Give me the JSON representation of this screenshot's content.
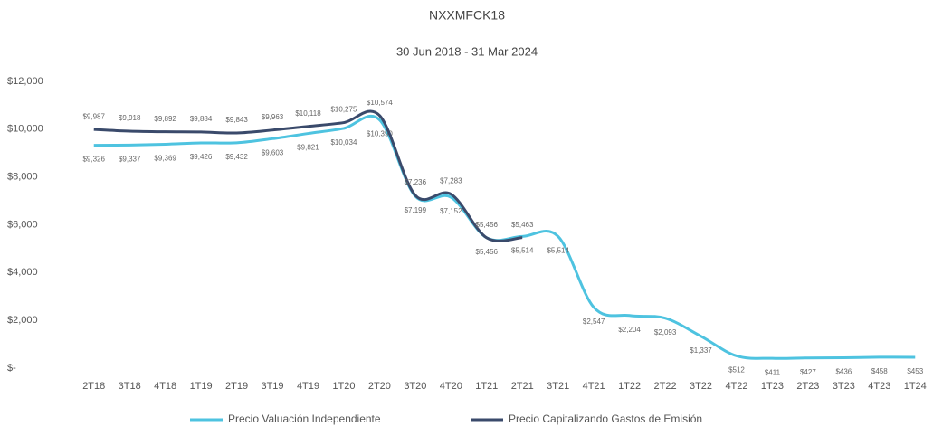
{
  "chart_data": {
    "type": "line",
    "title": "NXXMFCK18",
    "subtitle": "30 Jun 2018 - 31 Mar 2024",
    "categories": [
      "2T18",
      "3T18",
      "4T18",
      "1T19",
      "2T19",
      "3T19",
      "4T19",
      "1T20",
      "2T20",
      "3T20",
      "4T20",
      "1T21",
      "2T21",
      "3T21",
      "4T21",
      "1T22",
      "2T22",
      "3T22",
      "4T22",
      "1T23",
      "2T23",
      "3T23",
      "4T23",
      "1T24"
    ],
    "ylim": [
      0,
      12000
    ],
    "yticks": [
      {
        "value": 0,
        "label": "$-"
      },
      {
        "value": 2000,
        "label": "$2,000"
      },
      {
        "value": 4000,
        "label": "$4,000"
      },
      {
        "value": 6000,
        "label": "$6,000"
      },
      {
        "value": 8000,
        "label": "$8,000"
      },
      {
        "value": 10000,
        "label": "$10,000"
      },
      {
        "value": 12000,
        "label": "$12,000"
      }
    ],
    "grid": false,
    "legend": "bottom",
    "series": [
      {
        "name": "Precio Valuación Independiente",
        "color": "#4ec3e0",
        "values": [
          9326,
          9337,
          9369,
          9426,
          9432,
          9603,
          9821,
          10034,
          10390,
          7199,
          7152,
          5456,
          5514,
          5514,
          2547,
          2204,
          2093,
          1337,
          512,
          411,
          427,
          436,
          458,
          453
        ],
        "value_labels": [
          "$9,326",
          "$9,337",
          "$9,369",
          "$9,426",
          "$9,432",
          "$9,603",
          "$9,821",
          "$10,034",
          "$10,390",
          "$7,199",
          "$7,152",
          "$5,456",
          "$5,514",
          "$5,514",
          "$2,547",
          "$2,204",
          "$2,093",
          "$1,337",
          "$512",
          "$411",
          "$427",
          "$436",
          "$458",
          "$453"
        ]
      },
      {
        "name": "Precio Capitalizando Gastos de Emisión",
        "color": "#3a4a6b",
        "values": [
          9987,
          9918,
          9892,
          9884,
          9843,
          9963,
          10118,
          10275,
          10574,
          7236,
          7283,
          5456,
          5463,
          null,
          null,
          null,
          null,
          null,
          null,
          null,
          null,
          null,
          null,
          null
        ],
        "value_labels": [
          "$9,987",
          "$9,918",
          "$9,892",
          "$9,884",
          "$9,843",
          "$9,963",
          "$10,118",
          "$10,275",
          "$10,574",
          "$7,236",
          "$7,283",
          "$5,456",
          "$5,463",
          null,
          null,
          null,
          null,
          null,
          null,
          null,
          null,
          null,
          null,
          null
        ]
      }
    ]
  }
}
